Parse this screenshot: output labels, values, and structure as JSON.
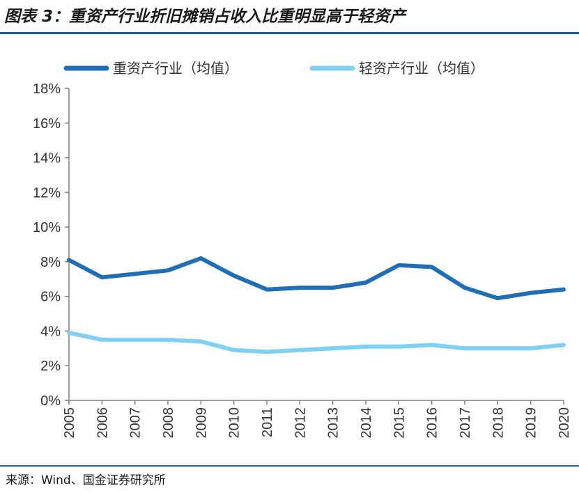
{
  "figure": {
    "title": "图表 3：重资产行业折旧摊销占收入比重明显高于轻资产",
    "source": "来源：Wind、国金证券研究所"
  },
  "colors": {
    "heavy": "#1f6fb2",
    "light": "#7fd0f2",
    "axis": "#7f7f7f",
    "rule": "#1f5fa0"
  },
  "chart_data": {
    "type": "line",
    "title": "",
    "xlabel": "",
    "ylabel": "",
    "categories": [
      "2005",
      "2006",
      "2007",
      "2008",
      "2009",
      "2010",
      "2011",
      "2012",
      "2013",
      "2014",
      "2015",
      "2016",
      "2017",
      "2018",
      "2019",
      "2020"
    ],
    "ylim": [
      0,
      0.18
    ],
    "y_ticks": [
      0,
      0.02,
      0.04,
      0.06,
      0.08,
      0.1,
      0.12,
      0.14,
      0.16,
      0.18
    ],
    "y_tick_labels": [
      "0%",
      "2%",
      "4%",
      "6%",
      "8%",
      "10%",
      "12%",
      "14%",
      "16%",
      "18%"
    ],
    "grid": false,
    "legend_position": "top",
    "series": [
      {
        "name": "重资产行业（均值）",
        "values": [
          0.081,
          0.071,
          0.073,
          0.075,
          0.082,
          0.072,
          0.064,
          0.065,
          0.065,
          0.068,
          0.078,
          0.077,
          0.065,
          0.059,
          0.062,
          0.064
        ]
      },
      {
        "name": "轻资产行业（均值）",
        "values": [
          0.039,
          0.035,
          0.035,
          0.035,
          0.034,
          0.029,
          0.028,
          0.029,
          0.03,
          0.031,
          0.031,
          0.032,
          0.03,
          0.03,
          0.03,
          0.032
        ]
      }
    ]
  }
}
